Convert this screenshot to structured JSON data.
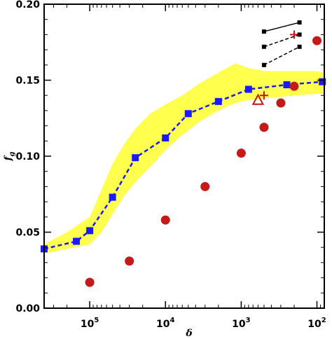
{
  "chart_data": {
    "type": "scatter",
    "xlabel": "δ",
    "ylabel": "f_g",
    "x_scale": "log",
    "x_reversed": true,
    "xlim": [
      400000,
      80
    ],
    "ylim": [
      0,
      0.2
    ],
    "x_ticks": [
      {
        "value": 100000,
        "base": "10",
        "exp": "5"
      },
      {
        "value": 10000,
        "base": "10",
        "exp": "4"
      },
      {
        "value": 1000,
        "base": "10",
        "exp": "3"
      },
      {
        "value": 100,
        "base": "10",
        "exp": "2"
      }
    ],
    "y_ticks": [
      {
        "value": 0.0,
        "label": "0.00"
      },
      {
        "value": 0.05,
        "label": "0.05"
      },
      {
        "value": 0.1,
        "label": "0.10"
      },
      {
        "value": 0.15,
        "label": "0.15"
      },
      {
        "value": 0.2,
        "label": "0.20"
      }
    ],
    "grid": false,
    "colors": {
      "band": "#ffff4d",
      "squares": "#1a1aff",
      "circles": "#c41a1a",
      "markers_red": "#cc1111",
      "black": "#000000"
    },
    "band": {
      "x": [
        400000,
        200000,
        100000,
        70000,
        50000,
        35000,
        25000,
        16000,
        10000,
        6000,
        3500,
        2000,
        1200,
        800,
        500,
        300,
        200,
        100,
        82
      ],
      "upper": [
        0.042,
        0.05,
        0.06,
        0.078,
        0.095,
        0.108,
        0.118,
        0.128,
        0.134,
        0.14,
        0.148,
        0.155,
        0.161,
        0.158,
        0.156,
        0.156,
        0.156,
        0.156,
        0.155
      ],
      "lower": [
        0.036,
        0.039,
        0.042,
        0.05,
        0.062,
        0.074,
        0.083,
        0.093,
        0.104,
        0.114,
        0.123,
        0.13,
        0.135,
        0.137,
        0.138,
        0.139,
        0.14,
        0.141,
        0.141
      ]
    },
    "series": [
      {
        "marker": "square",
        "line": "dashed",
        "x": [
          400000,
          150000,
          100000,
          50000,
          25000,
          10000,
          5000,
          2000,
          800,
          250,
          85
        ],
        "y": [
          0.039,
          0.044,
          0.051,
          0.073,
          0.099,
          0.112,
          0.128,
          0.136,
          0.144,
          0.147,
          0.149
        ]
      },
      {
        "marker": "circle",
        "line": "none",
        "x": [
          100000,
          30000,
          10000,
          3000,
          1000,
          500,
          300,
          200,
          100
        ],
        "y": [
          0.017,
          0.031,
          0.058,
          0.08,
          0.102,
          0.119,
          0.135,
          0.146,
          0.176
        ]
      }
    ],
    "points": [
      {
        "marker": "triangle",
        "x": 600,
        "y": 0.137
      },
      {
        "marker": "plus",
        "x": 500,
        "y": 0.14
      },
      {
        "marker": "plus",
        "x": 200,
        "y": 0.18
      }
    ],
    "legend_lines": [
      {
        "style": "solid",
        "y0": 0.182,
        "y1": 0.188
      },
      {
        "style": "dashed",
        "y0": 0.172,
        "y1": 0.18
      },
      {
        "style": "dashed",
        "y0": 0.16,
        "y1": 0.172
      }
    ],
    "legend_x": [
      500,
      170
    ]
  }
}
